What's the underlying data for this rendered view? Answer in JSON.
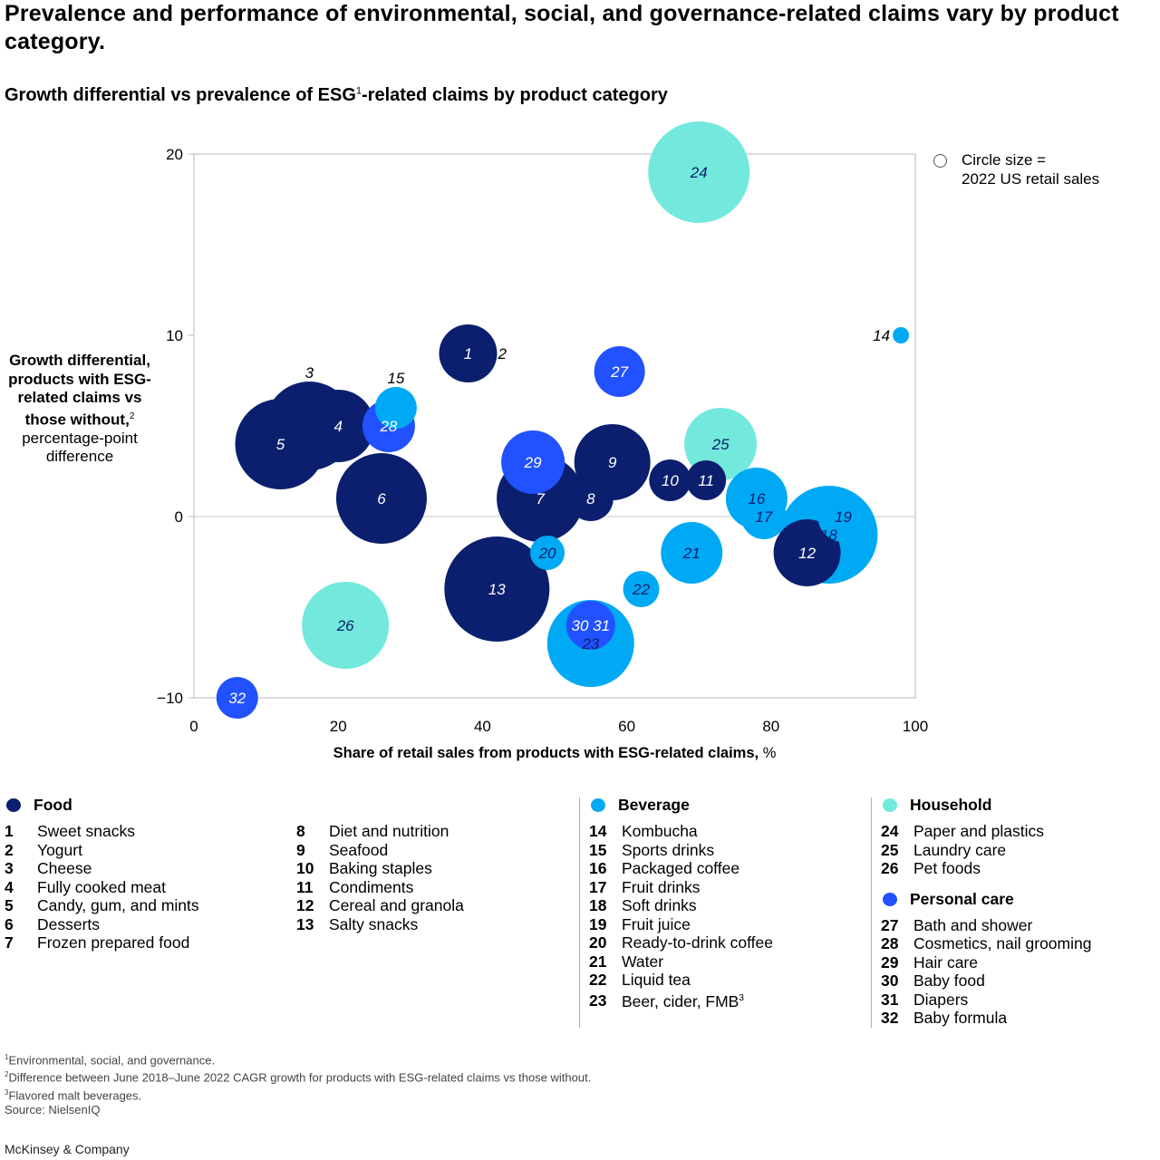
{
  "title": "Prevalence and performance of environmental, social, and governance-related claims vary by product category.",
  "subtitle": {
    "before": "Growth differential vs prevalence of ESG",
    "sup": "1",
    "after": "-related claims by product category"
  },
  "ylabel": {
    "bold": "Growth differential, products with ESG-related claims vs those without,",
    "sup": "2",
    "rest": "percentage-point difference"
  },
  "xlabel": {
    "bold": "Share of retail sales from products with ESG-related claims,",
    "unit": "%"
  },
  "size_legend": {
    "line1": "Circle size =",
    "line2": "2022 US retail sales"
  },
  "colors": {
    "Food": "#0b1f6e",
    "Beverage": "#00a9f4",
    "Household": "#72e9dc",
    "Personal care": "#2251ff"
  },
  "chart_data": {
    "type": "scatter",
    "xlim": [
      0,
      100
    ],
    "ylim": [
      -10,
      20
    ],
    "xticks": [
      0,
      20,
      40,
      60,
      80,
      100
    ],
    "yticks": [
      -10,
      0,
      10,
      20
    ],
    "grid": "zero-line",
    "legend": "right",
    "points": [
      {
        "id": "24",
        "cat": "Household",
        "x": 70,
        "y": 19,
        "r": 56
      },
      {
        "id": "14",
        "cat": "Beverage",
        "x": 98,
        "y": 10,
        "r": 9,
        "label": "left"
      },
      {
        "id": "1",
        "cat": "Food",
        "x": 38,
        "y": 9,
        "r": 32
      },
      {
        "id": "2",
        "cat": "Food",
        "x": 38,
        "y": 9,
        "r": 0,
        "label": "right"
      },
      {
        "id": "27",
        "cat": "Personal care",
        "x": 59,
        "y": 8,
        "r": 28
      },
      {
        "id": "3",
        "cat": "Food",
        "x": 16,
        "y": 5,
        "r": 49,
        "label": "above"
      },
      {
        "id": "4",
        "cat": "Food",
        "x": 20,
        "y": 5,
        "r": 40
      },
      {
        "id": "5",
        "cat": "Food",
        "x": 12,
        "y": 4,
        "r": 50
      },
      {
        "id": "15",
        "cat": "Beverage",
        "x": 28,
        "y": 6,
        "r": 23,
        "label": "above"
      },
      {
        "id": "28",
        "cat": "Personal care",
        "x": 27,
        "y": 5,
        "r": 29
      },
      {
        "id": "25",
        "cat": "Household",
        "x": 73,
        "y": 4,
        "r": 40
      },
      {
        "id": "7",
        "cat": "Food",
        "x": 48,
        "y": 1,
        "r": 48
      },
      {
        "id": "9",
        "cat": "Food",
        "x": 58,
        "y": 3,
        "r": 42
      },
      {
        "id": "29",
        "cat": "Personal care",
        "x": 47,
        "y": 3,
        "r": 35
      },
      {
        "id": "8",
        "cat": "Food",
        "x": 55,
        "y": 1,
        "r": 25
      },
      {
        "id": "10",
        "cat": "Food",
        "x": 66,
        "y": 2,
        "r": 23
      },
      {
        "id": "11",
        "cat": "Food",
        "x": 71,
        "y": 2,
        "r": 22
      },
      {
        "id": "6",
        "cat": "Food",
        "x": 26,
        "y": 1,
        "r": 50
      },
      {
        "id": "16",
        "cat": "Beverage",
        "x": 78,
        "y": 1,
        "r": 34
      },
      {
        "id": "17",
        "cat": "Beverage",
        "x": 79,
        "y": 0,
        "r": 25
      },
      {
        "id": "19",
        "cat": "Beverage",
        "x": 90,
        "y": 0,
        "r": 28
      },
      {
        "id": "18",
        "cat": "Beverage",
        "x": 88,
        "y": -1,
        "r": 54
      },
      {
        "id": "12",
        "cat": "Food",
        "x": 85,
        "y": -2,
        "r": 37
      },
      {
        "id": "20",
        "cat": "Beverage",
        "x": 49,
        "y": -2,
        "r": 19
      },
      {
        "id": "21",
        "cat": "Beverage",
        "x": 69,
        "y": -2,
        "r": 34
      },
      {
        "id": "13",
        "cat": "Food",
        "x": 42,
        "y": -4,
        "r": 58
      },
      {
        "id": "22",
        "cat": "Beverage",
        "x": 62,
        "y": -4,
        "r": 20
      },
      {
        "id": "26",
        "cat": "Household",
        "x": 21,
        "y": -6,
        "r": 48
      },
      {
        "id": "23",
        "cat": "Beverage",
        "x": 55,
        "y": -7,
        "r": 48
      },
      {
        "id": "30 31",
        "cat": "Personal care",
        "x": 55,
        "y": -6,
        "r": 27
      },
      {
        "id": "32",
        "cat": "Personal care",
        "x": 6,
        "y": -10,
        "r": 23
      }
    ]
  },
  "legend": {
    "food": {
      "name": "Food",
      "items": [
        {
          "n": "1",
          "label": "Sweet snacks"
        },
        {
          "n": "2",
          "label": "Yogurt"
        },
        {
          "n": "3",
          "label": "Cheese"
        },
        {
          "n": "4",
          "label": "Fully cooked meat"
        },
        {
          "n": "5",
          "label": "Candy, gum, and mints"
        },
        {
          "n": "6",
          "label": "Desserts"
        },
        {
          "n": "7",
          "label": "Frozen prepared food"
        }
      ]
    },
    "food2": {
      "items": [
        {
          "n": "8",
          "label": "Diet and nutrition"
        },
        {
          "n": "9",
          "label": "Seafood"
        },
        {
          "n": "10",
          "label": "Baking staples"
        },
        {
          "n": "11",
          "label": "Condiments"
        },
        {
          "n": "12",
          "label": "Cereal and granola"
        },
        {
          "n": "13",
          "label": "Salty snacks"
        }
      ]
    },
    "beverage": {
      "name": "Beverage",
      "items": [
        {
          "n": "14",
          "label": "Kombucha"
        },
        {
          "n": "15",
          "label": "Sports drinks"
        },
        {
          "n": "16",
          "label": "Packaged coffee"
        },
        {
          "n": "17",
          "label": "Fruit drinks"
        },
        {
          "n": "18",
          "label": "Soft drinks"
        },
        {
          "n": "19",
          "label": "Fruit juice"
        },
        {
          "n": "20",
          "label": "Ready-to-drink coffee"
        },
        {
          "n": "21",
          "label": "Water"
        },
        {
          "n": "22",
          "label": "Liquid tea"
        },
        {
          "n": "23",
          "label": "Beer, cider, FMB",
          "sup": "3"
        }
      ]
    },
    "household": {
      "name": "Household",
      "items": [
        {
          "n": "24",
          "label": "Paper and plastics"
        },
        {
          "n": "25",
          "label": "Laundry care"
        },
        {
          "n": "26",
          "label": "Pet foods"
        }
      ]
    },
    "personal": {
      "name": "Personal care",
      "items": [
        {
          "n": "27",
          "label": "Bath and shower"
        },
        {
          "n": "28",
          "label": "Cosmetics, nail grooming"
        },
        {
          "n": "29",
          "label": "Hair care"
        },
        {
          "n": "30",
          "label": "Baby food"
        },
        {
          "n": "31",
          "label": "Diapers"
        },
        {
          "n": "32",
          "label": "Baby formula"
        }
      ]
    }
  },
  "footnotes": [
    {
      "sup": "1",
      "text": "Environmental, social, and governance."
    },
    {
      "sup": "2",
      "text": "Difference between June 2018–June 2022 CAGR growth for products with ESG-related claims vs those without."
    },
    {
      "sup": "3",
      "text": "Flavored malt beverages."
    },
    {
      "sup": "",
      "text": " Source: NielsenIQ"
    }
  ],
  "brand": "McKinsey & Company"
}
